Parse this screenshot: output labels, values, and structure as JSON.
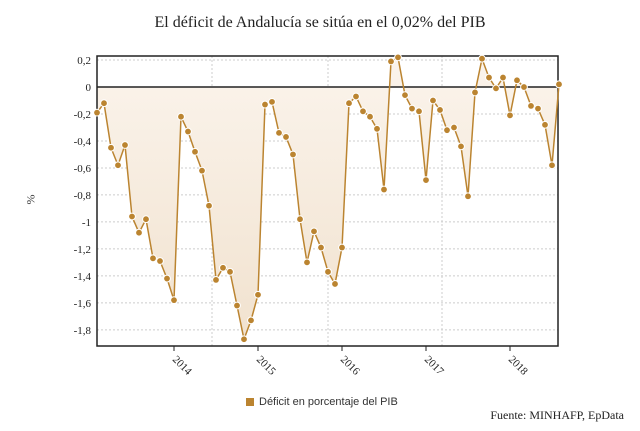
{
  "chart_data": {
    "type": "area",
    "title": "El déficit de Andalucía se sitúa en el 0,02% del PIB",
    "ylabel": "%",
    "xlabel": "",
    "source": "Fuente: MINHAFP, EpData",
    "legend_position": "bottom",
    "grid": true,
    "ylim": [
      -1.92,
      0.23
    ],
    "y_ticks": [
      "0,2",
      "0",
      "-0,2",
      "-0,4",
      "-0,6",
      "-0,8",
      "-1",
      "-1,2",
      "-1,4",
      "-1,6",
      "-1,8"
    ],
    "y_tick_values": [
      0.2,
      0,
      -0.2,
      -0.4,
      -0.6,
      -0.8,
      -1,
      -1.2,
      -1.4,
      -1.6,
      -1.8
    ],
    "x_ticks": [
      "2014",
      "2015",
      "2016",
      "2017",
      "2018"
    ],
    "x_start": "2013-02",
    "x_end": "2018-08",
    "colors": {
      "series": "#bb8430",
      "fill": "#f1e2cf"
    },
    "series": [
      {
        "name": "Déficit en porcentaje del PIB",
        "values": [
          -0.19,
          -0.12,
          -0.45,
          -0.58,
          -0.43,
          -0.96,
          -1.08,
          -0.98,
          -1.27,
          -1.29,
          -1.42,
          -1.58,
          -0.22,
          -0.33,
          -0.48,
          -0.62,
          -0.88,
          -1.43,
          -1.34,
          -1.37,
          -1.62,
          -1.87,
          -1.73,
          -1.54,
          -0.13,
          -0.11,
          -0.34,
          -0.37,
          -0.5,
          -0.98,
          -1.3,
          -1.07,
          -1.19,
          -1.37,
          -1.46,
          -1.19,
          -0.12,
          -0.07,
          -0.18,
          -0.22,
          -0.31,
          -0.76,
          0.19,
          0.22,
          -0.06,
          -0.16,
          -0.18,
          -0.69,
          -0.1,
          -0.17,
          -0.32,
          -0.3,
          -0.44,
          -0.81,
          -0.04,
          0.21,
          0.07,
          -0.01,
          0.07,
          -0.21,
          0.05,
          0.0,
          -0.14,
          -0.16,
          -0.28,
          -0.58,
          0.02
        ]
      }
    ]
  }
}
